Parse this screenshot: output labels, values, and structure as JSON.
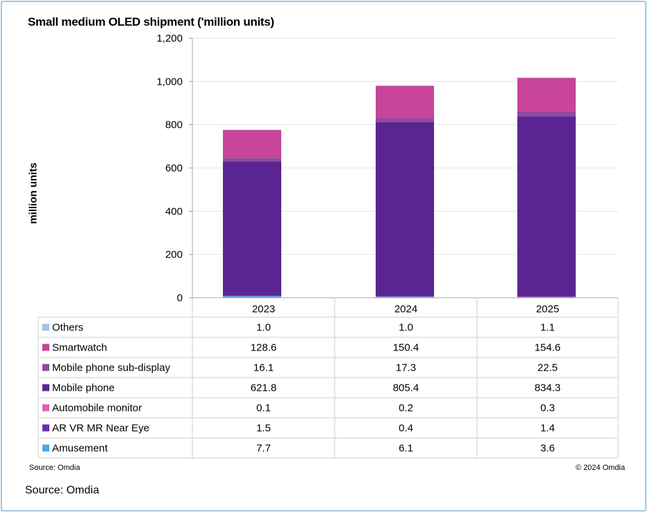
{
  "chart_data": {
    "type": "bar",
    "stacked": true,
    "title": "Small medium OLED shipment ('million units)",
    "ylabel": "million units",
    "xlabel": "",
    "ylim": [
      0,
      1200
    ],
    "yticks": [
      "0",
      "200",
      "400",
      "600",
      "800",
      "1,000",
      "1,200"
    ],
    "ytick_values": [
      0,
      200,
      400,
      600,
      800,
      1000,
      1200
    ],
    "grid": true,
    "categories": [
      "2023",
      "2024",
      "2025"
    ],
    "series": [
      {
        "name": "Others",
        "color": "#9dc3e6",
        "values": [
          1.0,
          1.0,
          1.1
        ],
        "labels": [
          "1.0",
          "1.0",
          "1.1"
        ]
      },
      {
        "name": "Smartwatch",
        "color": "#c8449a",
        "values": [
          128.6,
          150.4,
          154.6
        ],
        "labels": [
          "128.6",
          "150.4",
          "154.6"
        ]
      },
      {
        "name": "Mobile phone sub-display",
        "color": "#8e4aa0",
        "values": [
          16.1,
          17.3,
          22.5
        ],
        "labels": [
          "16.1",
          "17.3",
          "22.5"
        ]
      },
      {
        "name": "Mobile phone",
        "color": "#5b2591",
        "values": [
          621.8,
          805.4,
          834.3
        ],
        "labels": [
          "621.8",
          "805.4",
          "834.3"
        ]
      },
      {
        "name": "Automobile monitor",
        "color": "#e05fb5",
        "values": [
          0.1,
          0.2,
          0.3
        ],
        "labels": [
          "0.1",
          "0.2",
          "0.3"
        ]
      },
      {
        "name": "AR VR MR Near Eye",
        "color": "#6e2bb0",
        "values": [
          1.5,
          0.4,
          1.4
        ],
        "labels": [
          "1.5",
          "0.4",
          "1.4"
        ]
      },
      {
        "name": "Amusement",
        "color": "#4ea8e6",
        "values": [
          7.7,
          6.1,
          3.6
        ],
        "labels": [
          "7.7",
          "6.1",
          "3.6"
        ]
      }
    ],
    "legend": "data-table"
  },
  "footer": {
    "source_small": "Source: Omdia",
    "copyright": "© 2024 Omdia",
    "source_large": "Source: Omdia"
  }
}
